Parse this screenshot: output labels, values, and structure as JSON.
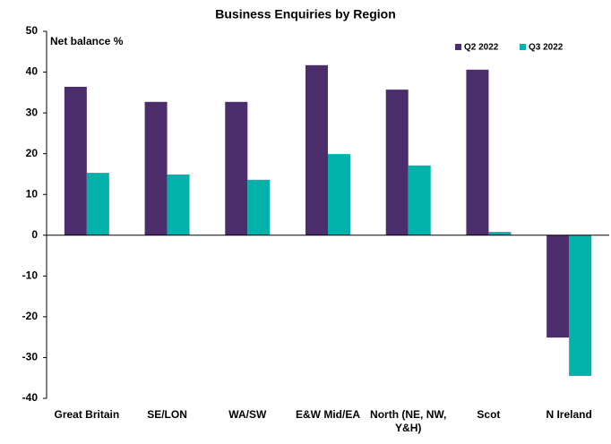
{
  "chart_data": {
    "type": "bar",
    "title": "Business Enquiries by Region",
    "ylabel": "Net balance %",
    "categories": [
      "Great Britain",
      "SE/LON",
      "WA/SW",
      "E&W Mid/EA",
      "North (NE, NW, Y&H)",
      "Scot",
      "N Ireland"
    ],
    "series": [
      {
        "name": "Q2 2022",
        "color": "#4b2e6b",
        "values": [
          36.4,
          32.7,
          32.7,
          41.7,
          35.7,
          40.6,
          -25.1
        ]
      },
      {
        "name": "Q3 2022",
        "color": "#00b2a9",
        "values": [
          15.3,
          14.9,
          13.6,
          19.9,
          17.1,
          0.8,
          -34.5
        ]
      }
    ],
    "ylim": [
      -40,
      50
    ],
    "yticks": [
      -40,
      -30,
      -20,
      -10,
      0,
      10,
      20,
      30,
      40,
      50
    ],
    "legend": "top-right"
  }
}
